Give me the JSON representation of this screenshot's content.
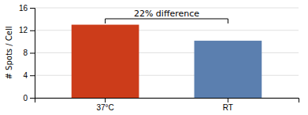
{
  "chart_data": {
    "type": "bar",
    "categories": [
      "37°C",
      "RT"
    ],
    "values": [
      13.0,
      10.15
    ],
    "colors": [
      "#cc3c1a",
      "#5b7faf"
    ],
    "y_label": "# Spots / Cell",
    "ylim": [
      0,
      16
    ],
    "yticks": [
      0,
      4,
      8,
      12,
      16
    ],
    "grid": true,
    "annotation": "22% difference"
  }
}
